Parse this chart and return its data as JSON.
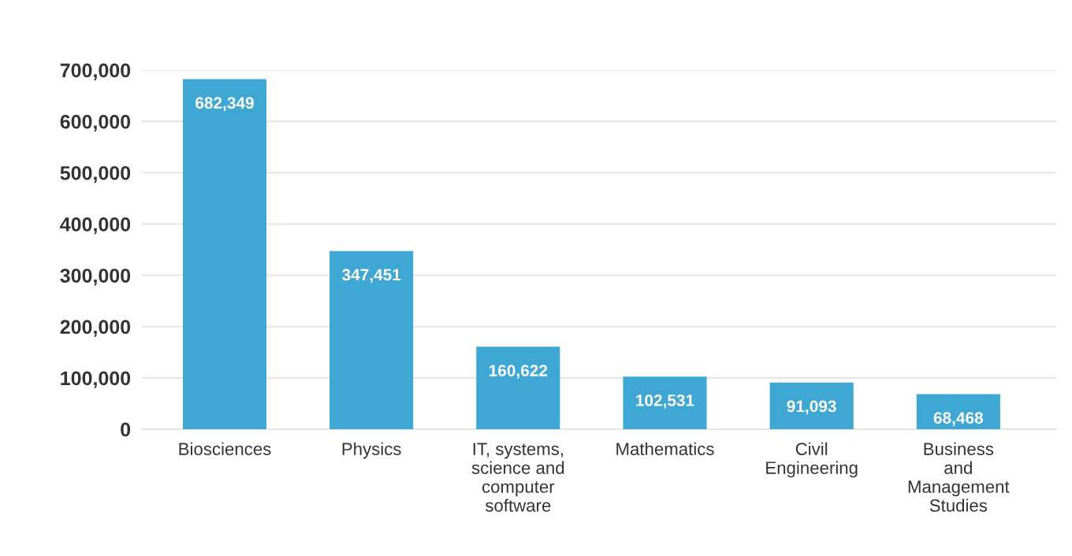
{
  "chart_data": {
    "type": "bar",
    "categories": [
      "Biosciences",
      "Physics",
      "IT, systems,\nscience and\ncomputer\nsoftware",
      "Mathematics",
      "Civil\nEngineering",
      "Business\nand\nManagement\nStudies"
    ],
    "values": [
      682349,
      347451,
      160622,
      102531,
      91093,
      68468
    ],
    "color": "#3fa7d3",
    "ylim": [
      0,
      700000
    ],
    "yticks": [
      {
        "value": 0,
        "label": "0"
      },
      {
        "value": 100000,
        "label": "100,000"
      },
      {
        "value": 200000,
        "label": "200,000"
      },
      {
        "value": 300000,
        "label": "300,000"
      },
      {
        "value": 400000,
        "label": "400,000"
      },
      {
        "value": 500000,
        "label": "500,000"
      },
      {
        "value": 600000,
        "label": "600,000"
      },
      {
        "value": 700000,
        "label": "700,000"
      }
    ],
    "value_labels": [
      "682,349",
      "347,451",
      "160,622",
      "102,531",
      "91,093",
      "68,468"
    ],
    "grid": "y"
  }
}
